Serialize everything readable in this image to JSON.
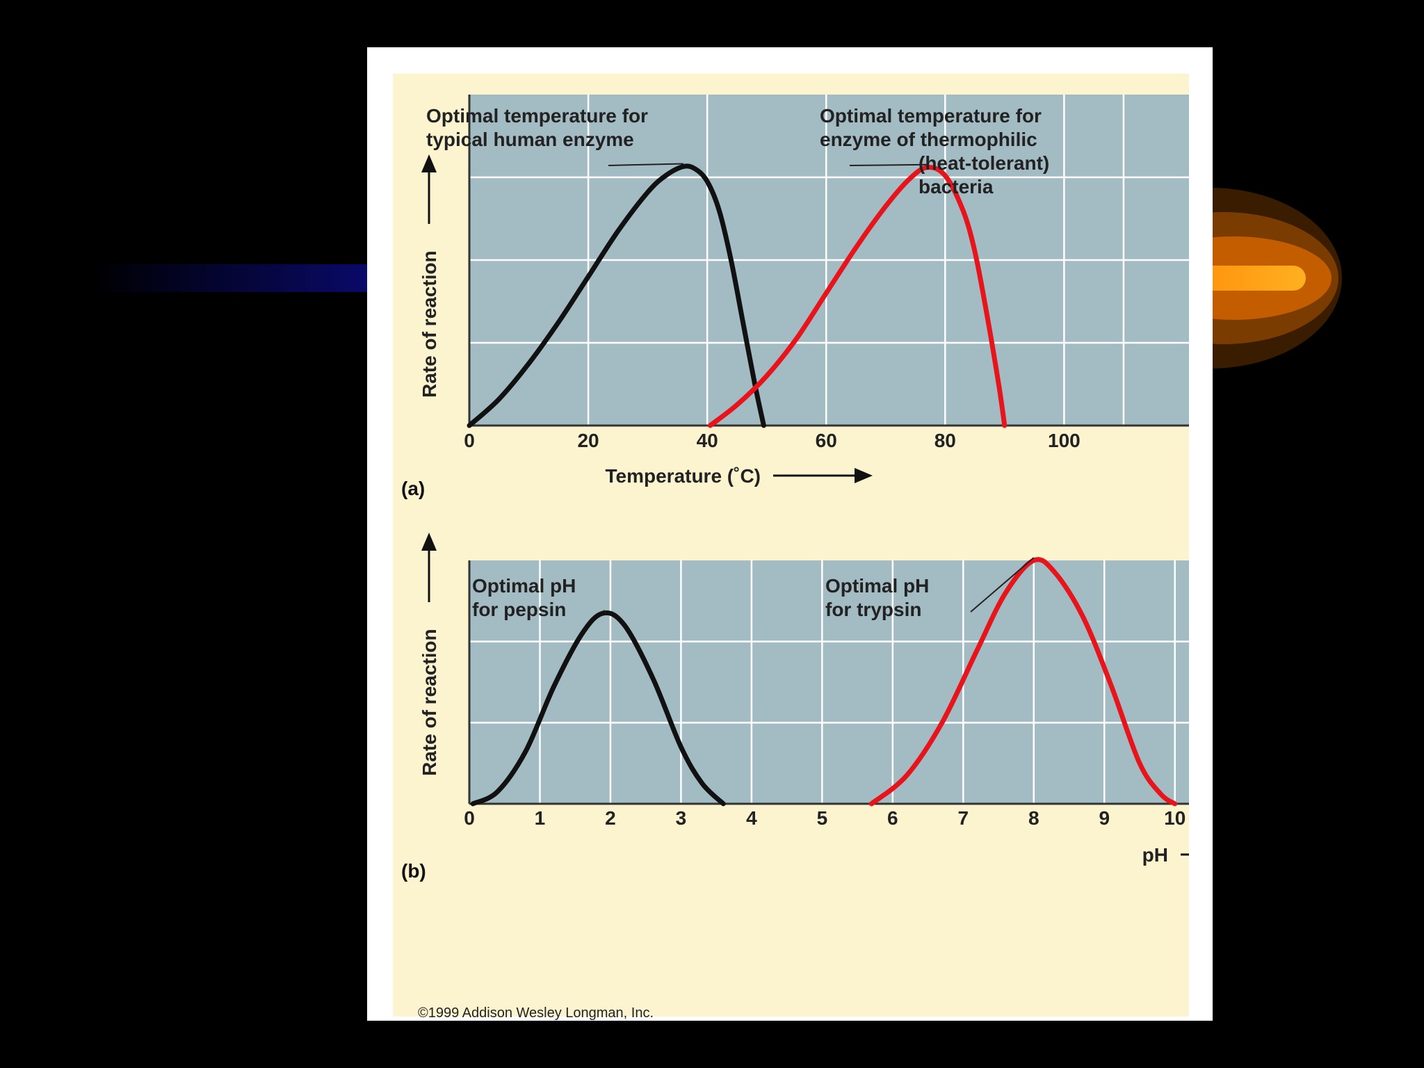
{
  "slide": {
    "background": "#000000",
    "accent_left": "#0a0a6e",
    "accent_right": "#ff9900"
  },
  "figure": {
    "copyright": "©1999 Addison Wesley Longman, Inc.",
    "plot_background": "#a3bcc3",
    "panel_background": "#fcf3cf"
  },
  "chart_data": [
    {
      "type": "line",
      "panel_label": "(a)",
      "xlabel": "Temperature (˚C)",
      "ylabel": "Rate of reaction",
      "xlim": [
        0,
        121
      ],
      "ylim": [
        0,
        4
      ],
      "x_ticks": [
        0,
        20,
        40,
        60,
        80,
        100
      ],
      "grid": true,
      "series": [
        {
          "color": "#111111",
          "x": [
            0,
            5,
            10,
            15,
            20,
            25,
            30,
            33,
            36,
            38,
            40,
            42,
            44,
            46,
            48,
            49.5
          ],
          "y": [
            0,
            0.32,
            0.75,
            1.25,
            1.8,
            2.35,
            2.82,
            3.02,
            3.13,
            3.1,
            2.95,
            2.6,
            2.0,
            1.25,
            0.5,
            0
          ]
        },
        {
          "color": "#e8141c",
          "x": [
            40.5,
            45,
            50,
            55,
            60,
            65,
            70,
            74,
            77,
            80,
            83,
            85,
            87,
            89,
            90
          ],
          "y": [
            0,
            0.25,
            0.6,
            1.05,
            1.6,
            2.15,
            2.65,
            2.98,
            3.12,
            3.02,
            2.6,
            2.1,
            1.35,
            0.5,
            0
          ]
        }
      ],
      "annotations": [
        {
          "lines": [
            "Optimal temperature for",
            "typical human enzyme"
          ],
          "x": 36,
          "y": 3.13
        },
        {
          "lines": [
            "Optimal temperature for",
            "enzyme of thermophilic",
            "(heat-tolerant)",
            "bacteria"
          ],
          "x": 77,
          "y": 3.12
        }
      ]
    },
    {
      "type": "line",
      "panel_label": "(b)",
      "xlabel": "pH",
      "ylabel": "Rate of reaction",
      "xlim": [
        0,
        10.2
      ],
      "ylim": [
        0,
        3
      ],
      "x_ticks": [
        0,
        1,
        2,
        3,
        4,
        5,
        6,
        7,
        8,
        9,
        10
      ],
      "grid": true,
      "series": [
        {
          "color": "#111111",
          "x": [
            0.05,
            0.4,
            0.8,
            1.2,
            1.6,
            1.9,
            2.2,
            2.6,
            3.0,
            3.3,
            3.6
          ],
          "y": [
            0,
            0.15,
            0.65,
            1.45,
            2.1,
            2.35,
            2.2,
            1.55,
            0.7,
            0.25,
            0
          ]
        },
        {
          "color": "#e8141c",
          "x": [
            5.7,
            6.2,
            6.7,
            7.2,
            7.6,
            8.0,
            8.3,
            8.7,
            9.1,
            9.5,
            9.8,
            10.0
          ],
          "y": [
            0,
            0.35,
            1.0,
            1.9,
            2.6,
            3.0,
            2.85,
            2.3,
            1.45,
            0.5,
            0.12,
            0
          ]
        }
      ],
      "annotations": [
        {
          "lines": [
            "Optimal pH",
            "for pepsin"
          ],
          "x": 1.9,
          "y": 2.35
        },
        {
          "lines": [
            "Optimal pH",
            "for trypsin"
          ],
          "x": 8.0,
          "y": 3.0
        }
      ]
    }
  ]
}
